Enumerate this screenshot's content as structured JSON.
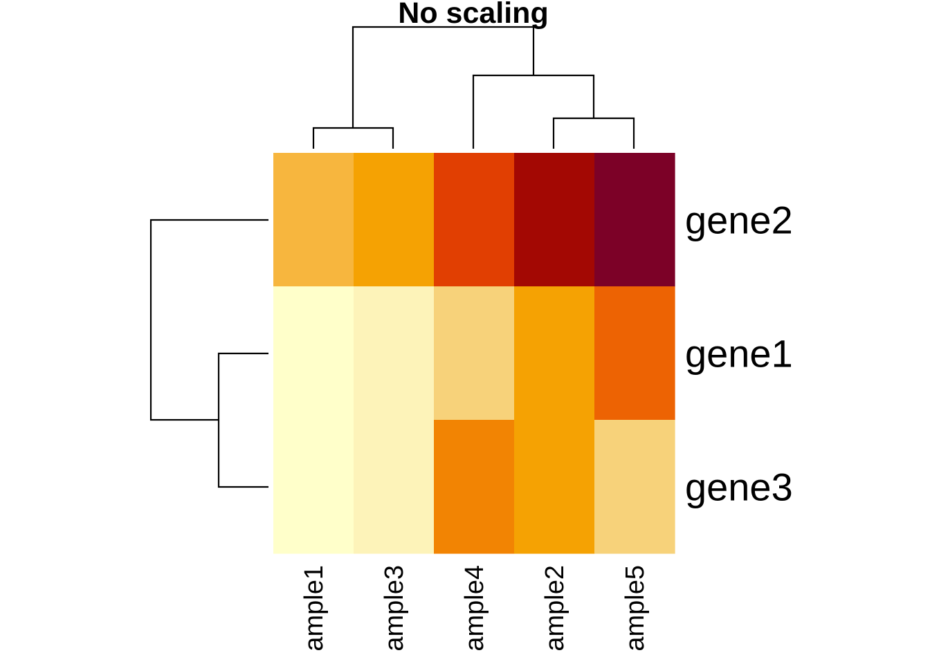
{
  "chart_data": {
    "type": "heatmap",
    "title": "No scaling",
    "rows": [
      "gene2",
      "gene1",
      "gene3"
    ],
    "columns": [
      "ample1",
      "ample3",
      "ample4",
      "ample2",
      "ample5"
    ],
    "cell_colors": [
      [
        "#F7B63E",
        "#F5A203",
        "#E13F02",
        "#A30803",
        "#7C0127"
      ],
      [
        "#FFFFCA",
        "#FDF3B9",
        "#F7D27A",
        "#F5A203",
        "#ED6303"
      ],
      [
        "#FFFFCA",
        "#FDF3B9",
        "#F28403",
        "#F5A203",
        "#F7D27A"
      ]
    ],
    "color_scale": [
      "#FFFFCA",
      "#FDF3B9",
      "#F7D27A",
      "#F7B63E",
      "#F5A203",
      "#F28403",
      "#ED6303",
      "#E13F02",
      "#A30803",
      "#7C0127"
    ],
    "row_dendrogram": "gene2 | (gene1, gene3)",
    "column_dendrogram": "(ample1, ample3) | (ample4, (ample2, ample5))"
  }
}
